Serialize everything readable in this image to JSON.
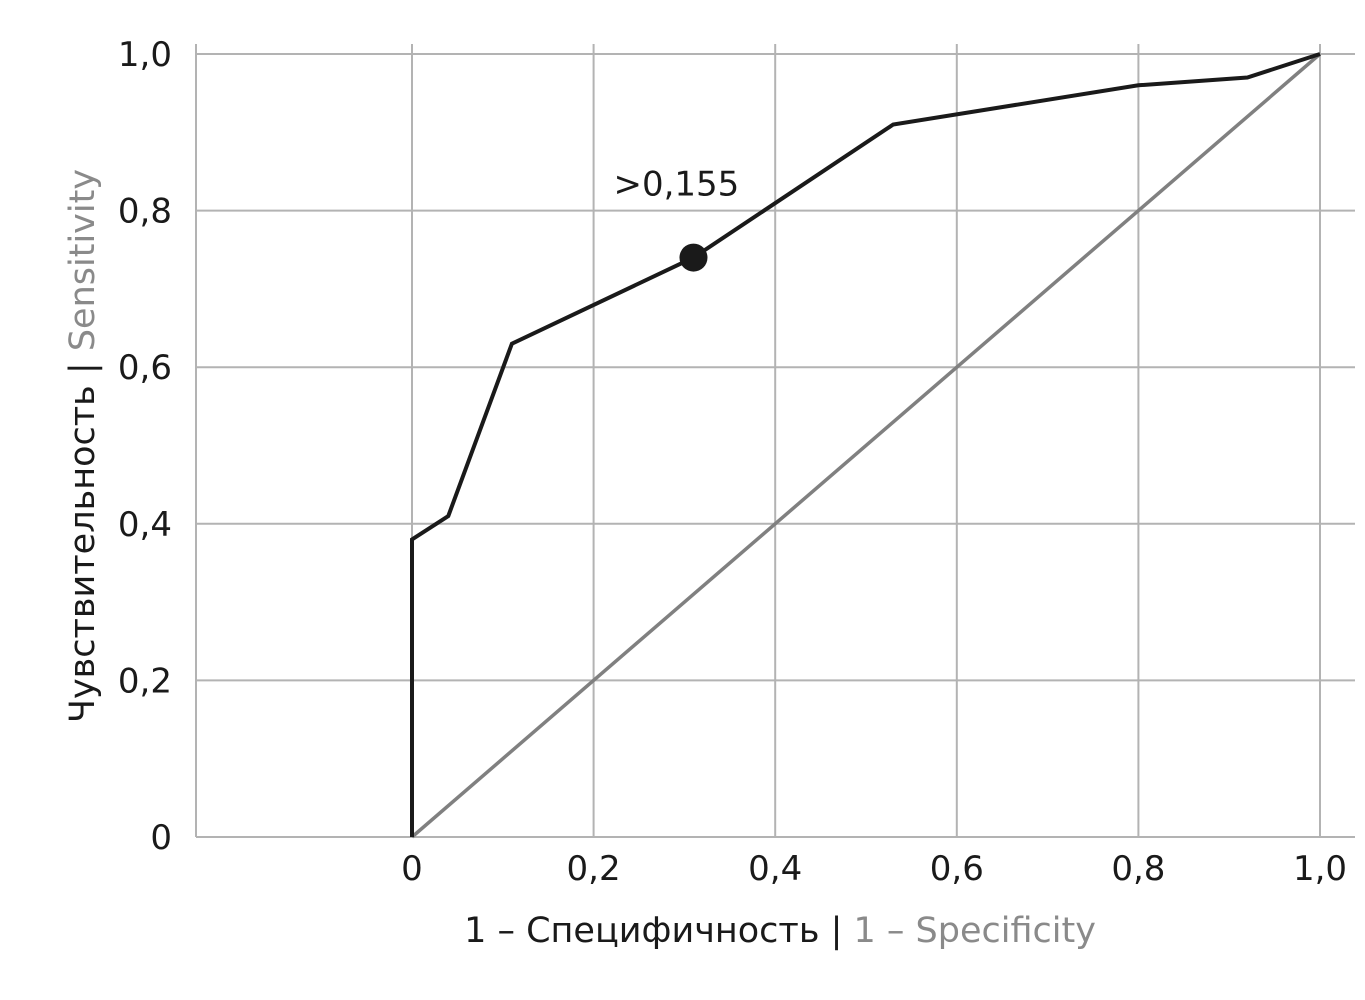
{
  "chart_data": {
    "type": "line",
    "title": "",
    "xlabel": {
      "primary": "1 – Специфичность",
      "separator": " | ",
      "secondary": "1 – Specificity"
    },
    "ylabel": {
      "primary": "Чувствительность",
      "separator": " | ",
      "secondary": "Sensitivity"
    },
    "xlim": [
      0,
      1
    ],
    "ylim": [
      0,
      1
    ],
    "x_ticks": [
      {
        "value": 0,
        "label": "0"
      },
      {
        "value": 0.2,
        "label": "0,2"
      },
      {
        "value": 0.4,
        "label": "0,4"
      },
      {
        "value": 0.6,
        "label": "0,6"
      },
      {
        "value": 0.8,
        "label": "0,8"
      },
      {
        "value": 1.0,
        "label": "1,0"
      }
    ],
    "y_ticks": [
      {
        "value": 0,
        "label": "0"
      },
      {
        "value": 0.2,
        "label": "0,2"
      },
      {
        "value": 0.4,
        "label": "0,4"
      },
      {
        "value": 0.6,
        "label": "0,6"
      },
      {
        "value": 0.8,
        "label": "0,8"
      },
      {
        "value": 1.0,
        "label": "1,0"
      }
    ],
    "grid": true,
    "series": [
      {
        "x": [
          0,
          0,
          0.04,
          0.11,
          0.31,
          0.53,
          0.8,
          0.92,
          1.0
        ],
        "y": [
          0,
          0.38,
          0.41,
          0.63,
          0.74,
          0.91,
          0.96,
          0.97,
          1.0
        ],
        "color": "#1a1a1a"
      },
      {
        "x": [
          0,
          1.0
        ],
        "y": [
          0,
          1.0
        ],
        "color": "#808080"
      }
    ],
    "annotations": [
      {
        "text": ">0,155",
        "x": 0.31,
        "y": 0.74,
        "marker": "filled-circle"
      }
    ]
  }
}
